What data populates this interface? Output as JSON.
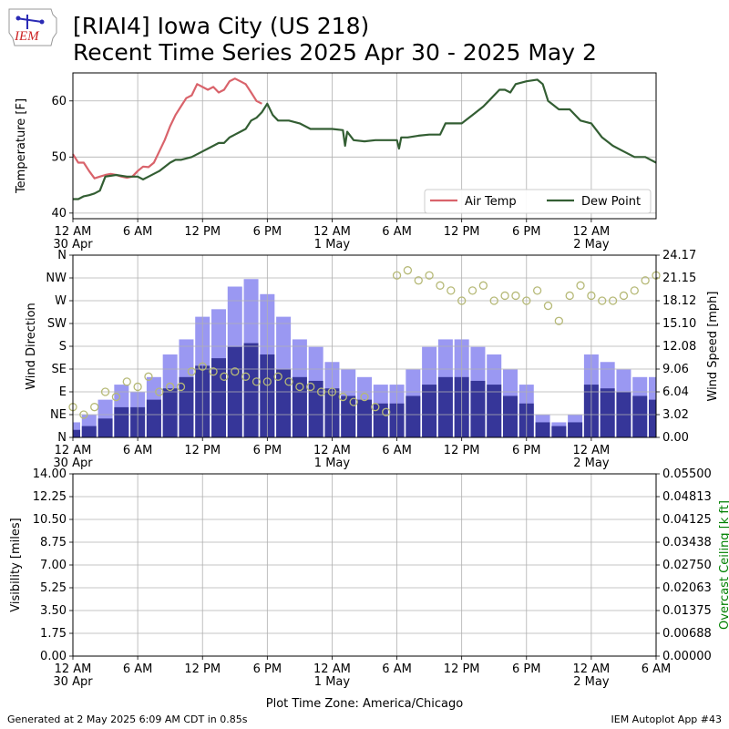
{
  "header": {
    "title_line1": "[RIAI4] Iowa City (US 218)",
    "title_line2": "Recent Time Series 2025 Apr 30 - 2025 May 2",
    "logo_text": "IEM"
  },
  "footer": {
    "generated": "Generated at 2 May 2025 6:09 AM CDT in 0.85s",
    "app": "IEM Autoplot App #43"
  },
  "colors": {
    "air_temp": "#d9636b",
    "dew_point": "#335e33",
    "wind_gust_bar": "#9a98f2",
    "wind_speed_bar": "#363699",
    "wind_direction_marker": "#b6b977",
    "ceiling_label": "#008000",
    "grid": "#b0b0b0"
  },
  "chart_data": [
    {
      "type": "line",
      "name": "temperature",
      "ylabel": "Temperature [F]",
      "xlabel": "",
      "x_unit": "hours since 12 AM 30 Apr",
      "xlim": [
        0,
        54
      ],
      "ylim": [
        39,
        65
      ],
      "yticks": [
        40,
        50,
        60
      ],
      "xtick_labels": [
        {
          "x": 0,
          "line1": "12 AM",
          "line2": "30 Apr"
        },
        {
          "x": 6,
          "line1": "6 AM",
          "line2": ""
        },
        {
          "x": 12,
          "line1": "12 PM",
          "line2": ""
        },
        {
          "x": 18,
          "line1": "6 PM",
          "line2": ""
        },
        {
          "x": 24,
          "line1": "12 AM",
          "line2": "1 May"
        },
        {
          "x": 30,
          "line1": "6 AM",
          "line2": ""
        },
        {
          "x": 36,
          "line1": "12 PM",
          "line2": ""
        },
        {
          "x": 42,
          "line1": "6 PM",
          "line2": ""
        },
        {
          "x": 48,
          "line1": "12 AM",
          "line2": "2 May"
        }
      ],
      "grid": true,
      "legend": {
        "placement": "lower-right",
        "entries": [
          "Air Temp",
          "Dew Point"
        ]
      },
      "series": [
        {
          "name": "Air Temp",
          "x": [
            0,
            0.5,
            1,
            1.5,
            2,
            2.5,
            3,
            3.5,
            4,
            4.5,
            5,
            5.5,
            6,
            6.5,
            7,
            7.5,
            8,
            8.5,
            9,
            9.5,
            10,
            10.5,
            11,
            11.5,
            12,
            12.5,
            13,
            13.5,
            14,
            14.5,
            15,
            15.5,
            16,
            16.5,
            17,
            17.5
          ],
          "values": [
            50.5,
            49,
            49,
            47.5,
            46.2,
            46.5,
            46.8,
            47,
            46.8,
            46.5,
            46.3,
            46.5,
            47.5,
            48.3,
            48.2,
            49,
            51,
            53,
            55.5,
            57.5,
            59,
            60.5,
            61,
            63,
            62.5,
            62,
            62.5,
            61.5,
            62,
            63.5,
            64,
            63.5,
            63,
            61.5,
            60,
            59.5
          ]
        },
        {
          "name": "Dew Point",
          "x": [
            0,
            0.5,
            1,
            1.5,
            2,
            2.5,
            3,
            4,
            5,
            6,
            6.5,
            7,
            8,
            9,
            9.5,
            10,
            11,
            12,
            12.5,
            13,
            13.5,
            14,
            14.5,
            15,
            15.5,
            16,
            16.5,
            17,
            17.5,
            18,
            18.5,
            19,
            20,
            21,
            22,
            23,
            24,
            25,
            25.2,
            25.4,
            26,
            27,
            28,
            29,
            30,
            30.2,
            30.4,
            31,
            32,
            33,
            34,
            34.5,
            35,
            36,
            37,
            38,
            38.5,
            39,
            39.5,
            40,
            40.5,
            41,
            42,
            43,
            43.5,
            44,
            45,
            45.5,
            46,
            47,
            48,
            49,
            50,
            51,
            52,
            53,
            54
          ],
          "values": [
            42.5,
            42.5,
            43,
            43.2,
            43.5,
            44,
            46.5,
            46.8,
            46.5,
            46.5,
            46,
            46.5,
            47.5,
            49,
            49.5,
            49.5,
            50,
            51,
            51.5,
            52,
            52.5,
            52.5,
            53.5,
            54,
            54.5,
            55,
            56.5,
            57,
            58,
            59.5,
            57.5,
            56.5,
            56.5,
            56,
            55,
            55,
            55,
            54.8,
            52,
            54.5,
            53,
            52.8,
            53,
            53,
            53,
            51.5,
            53.5,
            53.5,
            53.8,
            54,
            54,
            56,
            56,
            56,
            57.5,
            59,
            60,
            61,
            62,
            62,
            61.5,
            63,
            63.5,
            63.8,
            63,
            60,
            58.5,
            58.5,
            58.5,
            56.5,
            56,
            53.5,
            52,
            51,
            50,
            50,
            49
          ]
        }
      ]
    },
    {
      "type": "bar",
      "name": "wind",
      "ylabel": "Wind Direction",
      "y2label": "Wind Speed [mph]",
      "x_unit": "hours since 12 AM 30 Apr",
      "xlim": [
        0,
        54
      ],
      "ylim": [
        0,
        360
      ],
      "y_tick_labels": [
        "N",
        "NE",
        "E",
        "SE",
        "S",
        "SW",
        "W",
        "NW",
        "N"
      ],
      "y2lim": [
        0,
        24.17
      ],
      "y2_tick_labels": [
        "0.00",
        "3.02",
        "6.04",
        "9.06",
        "12.08",
        "15.10",
        "18.12",
        "21.15",
        "24.17"
      ],
      "grid": true,
      "series": [
        {
          "name": "Wind Gust",
          "x": [
            0,
            1.5,
            3,
            4.5,
            6,
            7.5,
            9,
            10.5,
            12,
            13.5,
            15,
            16.5,
            18,
            19.5,
            21,
            22.5,
            24,
            25.5,
            27,
            28.5,
            30,
            31.5,
            33,
            34.5,
            36,
            37.5,
            39,
            40.5,
            42,
            43.5,
            45,
            46.5,
            48,
            49.5,
            51,
            52.5,
            54
          ],
          "values": [
            2,
            3,
            5,
            7,
            6,
            8,
            11,
            13,
            16,
            17,
            20,
            21,
            19,
            16,
            13,
            12,
            10,
            9,
            8,
            7,
            7,
            9,
            12,
            13,
            13,
            12,
            11,
            9,
            7,
            3,
            2,
            3,
            11,
            10,
            9,
            8,
            8
          ]
        },
        {
          "name": "Wind Speed",
          "x": [
            0,
            1.5,
            3,
            4.5,
            6,
            7.5,
            9,
            10.5,
            12,
            13.5,
            15,
            16.5,
            18,
            19.5,
            21,
            22.5,
            24,
            25.5,
            27,
            28.5,
            30,
            31.5,
            33,
            34.5,
            36,
            37.5,
            39,
            40.5,
            42,
            43.5,
            45,
            46.5,
            48,
            49.5,
            51,
            52.5,
            54
          ],
          "values": [
            1,
            1.5,
            2.5,
            4,
            4,
            5,
            6.5,
            8,
            9.5,
            10.5,
            12,
            12.5,
            11,
            9,
            8,
            7.5,
            6.5,
            5.5,
            5,
            4.5,
            4.5,
            5.5,
            7,
            8,
            8,
            7.5,
            7,
            5.5,
            4.5,
            2,
            1.5,
            2,
            7,
            6.5,
            6,
            5.5,
            5
          ]
        },
        {
          "name": "Wind Direction",
          "type": "scatter",
          "x": [
            0,
            1,
            2,
            3,
            4,
            5,
            6,
            7,
            8,
            9,
            10,
            11,
            12,
            13,
            14,
            15,
            16,
            17,
            18,
            19,
            20,
            21,
            22,
            23,
            24,
            25,
            26,
            27,
            28,
            29,
            30,
            31,
            32,
            33,
            34,
            35,
            36,
            37,
            38,
            39,
            40,
            41,
            42,
            43,
            44,
            45,
            46,
            47,
            48,
            49,
            50,
            51,
            52,
            53,
            54
          ],
          "values": [
            60,
            45,
            60,
            90,
            80,
            110,
            100,
            120,
            90,
            100,
            100,
            130,
            140,
            130,
            120,
            130,
            120,
            110,
            110,
            120,
            110,
            100,
            100,
            90,
            90,
            80,
            70,
            80,
            60,
            50,
            320,
            330,
            310,
            320,
            300,
            290,
            270,
            290,
            300,
            270,
            280,
            280,
            270,
            290,
            260,
            230,
            280,
            300,
            280,
            270,
            270,
            280,
            290,
            310,
            320
          ]
        }
      ]
    },
    {
      "type": "line",
      "name": "visibility",
      "ylabel": "Visibility [miles]",
      "y2label": "Overcast Ceiling [k ft]",
      "xlabel": "Plot Time Zone: America/Chicago",
      "x_unit": "hours since 12 AM 30 Apr",
      "xlim": [
        0,
        54
      ],
      "ylim": [
        0,
        14
      ],
      "y_tick_labels": [
        "0.00",
        "1.75",
        "3.50",
        "5.25",
        "7.00",
        "8.75",
        "10.50",
        "12.25",
        "14.00"
      ],
      "y2lim": [
        0,
        0.055
      ],
      "y2_tick_labels": [
        "0.00000",
        "0.00688",
        "0.01375",
        "0.02063",
        "0.02750",
        "0.03438",
        "0.04125",
        "0.04813",
        "0.05500"
      ],
      "xtick_labels": [
        {
          "x": 0,
          "line1": "12 AM",
          "line2": "30 Apr"
        },
        {
          "x": 6,
          "line1": "6 AM",
          "line2": ""
        },
        {
          "x": 12,
          "line1": "12 PM",
          "line2": ""
        },
        {
          "x": 18,
          "line1": "6 PM",
          "line2": ""
        },
        {
          "x": 24,
          "line1": "12 AM",
          "line2": "1 May"
        },
        {
          "x": 30,
          "line1": "6 AM",
          "line2": ""
        },
        {
          "x": 36,
          "line1": "12 PM",
          "line2": ""
        },
        {
          "x": 42,
          "line1": "6 PM",
          "line2": ""
        },
        {
          "x": 48,
          "line1": "12 AM",
          "line2": "2 May"
        },
        {
          "x": 54,
          "line1": "6 AM",
          "line2": ""
        }
      ],
      "grid": true,
      "series": []
    }
  ]
}
